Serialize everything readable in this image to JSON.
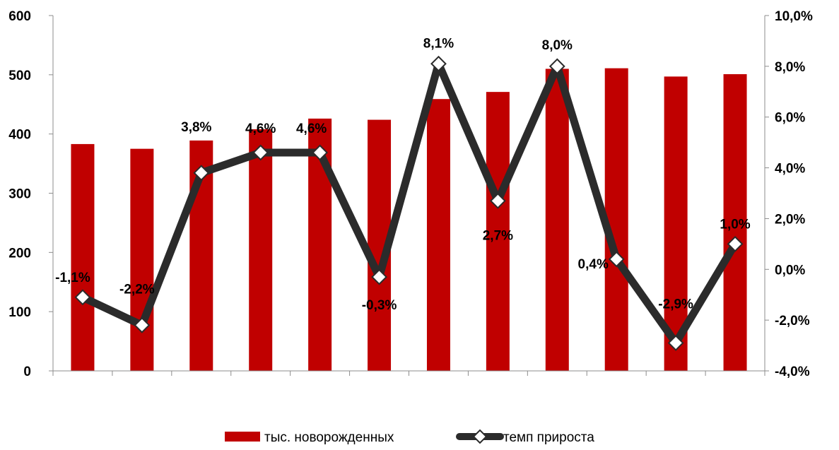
{
  "chart_data": {
    "type": "bar",
    "categories": [
      "",
      "",
      "",
      "",
      "",
      "",
      "",
      "",
      "",
      "",
      "",
      ""
    ],
    "y_left": {
      "ticks": [
        "600",
        "500",
        "400",
        "300",
        "200",
        "100",
        "0"
      ],
      "ylim": [
        0,
        600
      ]
    },
    "y_right": {
      "ticks": [
        "10,0%",
        "8,0%",
        "6,0%",
        "4,0%",
        "2,0%",
        "0,0%",
        "-2,0%",
        "-4,0%"
      ],
      "ylim": [
        -4,
        10
      ]
    },
    "grid": false,
    "legend_position": "bottom",
    "series": [
      {
        "name": "тыс. новорожденных",
        "type": "bar",
        "axis": "left",
        "color": "#c00000",
        "values": [
          383,
          375,
          389,
          408,
          426,
          424,
          459,
          471,
          510,
          511,
          497,
          501
        ]
      },
      {
        "name": "темп прироста",
        "type": "line",
        "axis": "right",
        "color": "#2b2b2b",
        "marker": "diamond",
        "values": [
          -1.1,
          -2.2,
          3.8,
          4.6,
          4.6,
          -0.3,
          8.1,
          2.7,
          8.0,
          0.4,
          -2.9,
          1.0
        ],
        "labels": [
          "-1,1%",
          "-2,2%",
          "3,8%",
          "4,6%",
          "4,6%",
          "-0,3%",
          "8,1%",
          "2,7%",
          "8,0%",
          "0,4%",
          "-2,9%",
          "1,0%"
        ]
      }
    ]
  }
}
